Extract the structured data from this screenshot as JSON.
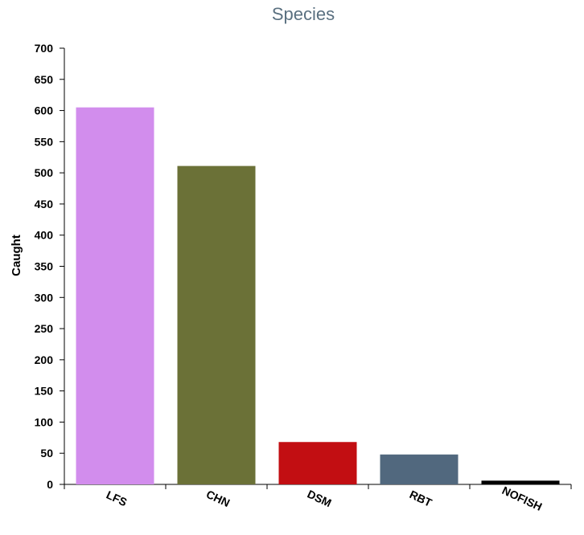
{
  "chart_data": {
    "type": "bar",
    "title": "Species",
    "xlabel": "",
    "ylabel": "Caught",
    "categories": [
      "LFS",
      "CHN",
      "DSM",
      "RBT",
      "NOFISH"
    ],
    "values": [
      605,
      511,
      68,
      48,
      6
    ],
    "colors": [
      "#d28ded",
      "#6b7137",
      "#c20e12",
      "#51687e",
      "#000000"
    ],
    "ylim": [
      0,
      700
    ],
    "yticks": [
      0,
      50,
      100,
      150,
      200,
      250,
      300,
      350,
      400,
      450,
      500,
      550,
      600,
      650,
      700
    ],
    "grid": false,
    "legend": "none"
  }
}
